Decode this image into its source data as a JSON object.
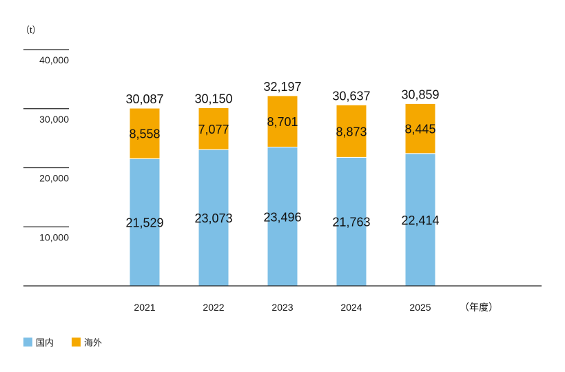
{
  "chart_data": {
    "type": "bar",
    "stacked": true,
    "y_unit_label": "（t）",
    "x_unit_label": "（年度）",
    "categories": [
      "2021",
      "2022",
      "2023",
      "2024",
      "2025"
    ],
    "series": [
      {
        "name": "国内",
        "color": "#7dbfe6",
        "values": [
          21529,
          23073,
          23496,
          21763,
          22414
        ]
      },
      {
        "name": "海外",
        "color": "#f5a800",
        "values": [
          8558,
          7077,
          8701,
          8873,
          8445
        ]
      }
    ],
    "totals": [
      30087,
      30150,
      32197,
      30637,
      30859
    ],
    "ylim": [
      0,
      40000
    ],
    "yticks": [
      10000,
      20000,
      30000,
      40000
    ],
    "ytick_labels": [
      "10,000",
      "20,000",
      "30,000",
      "40,000"
    ],
    "legend_position": "bottom-left",
    "grid": false
  }
}
